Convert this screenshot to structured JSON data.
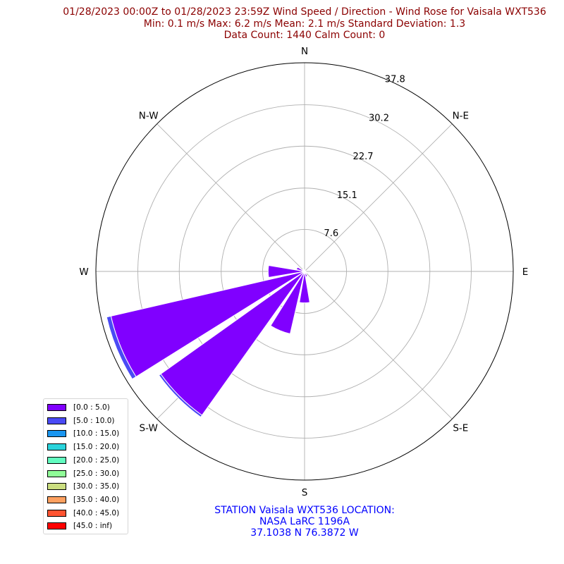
{
  "title": {
    "line1": "01/28/2023 00:00Z to 01/28/2023 23:59Z Wind Speed / Direction - Wind Rose for Vaisala WXT536",
    "line2": "Min: 0.1 m/s   Max: 6.2 m/s   Mean: 2.1 m/s  Standard Deviation: 1.3",
    "line3": "Data Count: 1440  Calm Count:  0"
  },
  "station": {
    "line1": "STATION Vaisala WXT536 LOCATION:",
    "line2": "NASA LaRC 1196A",
    "line3": "37.1038 N 76.3872 W"
  },
  "colors": {
    "title": "#8b0000",
    "station": "#0000ff",
    "grid": "#b0b0b0"
  },
  "chart_data": {
    "type": "windrose",
    "title": "01/28/2023 00:00Z to 01/28/2023 23:59Z Wind Speed / Direction - Wind Rose for Vaisala WXT536",
    "direction_labels": [
      "N",
      "N-E",
      "E",
      "S-E",
      "S",
      "S-W",
      "W",
      "N-W"
    ],
    "direction_label_angles": [
      0,
      45,
      90,
      135,
      180,
      225,
      270,
      315
    ],
    "radial_ticks": [
      7.6,
      15.1,
      22.7,
      30.2,
      37.8
    ],
    "radial_tick_labels": [
      "7.6",
      "15.1",
      "22.7",
      "30.2",
      "37.8"
    ],
    "rmax": 37.8,
    "grid": true,
    "legend_location": "lower-left",
    "speed_bins": [
      {
        "label": "[0.0 : 5.0)",
        "color": "#8000ff"
      },
      {
        "label": "[5.0 : 10.0)",
        "color": "#4a4af5"
      },
      {
        "label": "[10.0 : 15.0)",
        "color": "#1a96f0"
      },
      {
        "label": "[15.0 : 20.0)",
        "color": "#2ad4dc"
      },
      {
        "label": "[20.0 : 25.0)",
        "color": "#62fcc0"
      },
      {
        "label": "[25.0 : 30.0)",
        "color": "#90fc98"
      },
      {
        "label": "[30.0 : 35.0)",
        "color": "#cbde80"
      },
      {
        "label": "[35.0 : 40.0)",
        "color": "#fda060"
      },
      {
        "label": "[40.0 : 45.0)",
        "color": "#ff5431"
      },
      {
        "label": "[45.0 : inf)",
        "color": "#ff0000"
      }
    ],
    "directions_deg": [
      0,
      22.5,
      45,
      67.5,
      90,
      112.5,
      135,
      157.5,
      180,
      202.5,
      225,
      247.5,
      270,
      292.5,
      315,
      337.5
    ],
    "bin_width_deg": 19,
    "series": [
      {
        "bin": "[0.0 : 5.0)",
        "values": [
          0.3,
          0.2,
          0.2,
          0.2,
          0.2,
          0.3,
          0.5,
          1.0,
          5.7,
          11.6,
          32.0,
          36.0,
          6.6,
          1.5,
          0.5,
          0.4
        ]
      },
      {
        "bin": "[5.0 : 10.0)",
        "values": [
          0,
          0,
          0,
          0,
          0,
          0,
          0,
          0,
          0,
          0,
          0.4,
          0.8,
          0,
          0,
          0,
          0
        ]
      },
      {
        "bin": "[10.0 : 15.0)",
        "values": [
          0,
          0,
          0,
          0,
          0,
          0,
          0,
          0,
          0,
          0,
          0,
          0,
          0,
          0,
          0,
          0
        ]
      },
      {
        "bin": "[15.0 : 20.0)",
        "values": [
          0,
          0,
          0,
          0,
          0,
          0,
          0,
          0,
          0,
          0,
          0,
          0,
          0,
          0,
          0,
          0
        ]
      },
      {
        "bin": "[20.0 : 25.0)",
        "values": [
          0,
          0,
          0,
          0,
          0,
          0,
          0,
          0,
          0,
          0,
          0,
          0,
          0,
          0,
          0,
          0
        ]
      },
      {
        "bin": "[25.0 : 30.0)",
        "values": [
          0,
          0,
          0,
          0,
          0,
          0,
          0,
          0,
          0,
          0,
          0,
          0,
          0,
          0,
          0,
          0
        ]
      },
      {
        "bin": "[30.0 : 35.0)",
        "values": [
          0,
          0,
          0,
          0,
          0,
          0,
          0,
          0,
          0,
          0,
          0,
          0,
          0,
          0,
          0,
          0
        ]
      },
      {
        "bin": "[35.0 : 40.0)",
        "values": [
          0,
          0,
          0,
          0,
          0,
          0,
          0,
          0,
          0,
          0,
          0,
          0,
          0,
          0,
          0,
          0
        ]
      },
      {
        "bin": "[40.0 : 45.0)",
        "values": [
          0,
          0,
          0,
          0,
          0,
          0,
          0,
          0,
          0,
          0,
          0,
          0,
          0,
          0,
          0,
          0
        ]
      },
      {
        "bin": "[45.0 : inf)",
        "values": [
          0,
          0,
          0,
          0,
          0,
          0,
          0,
          0,
          0,
          0,
          0,
          0,
          0,
          0,
          0,
          0
        ]
      }
    ]
  }
}
